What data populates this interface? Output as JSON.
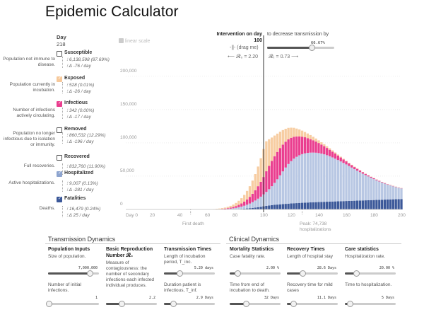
{
  "title": "Epidemic Calculator",
  "day": {
    "label": "Day",
    "value": "218"
  },
  "categories": [
    {
      "key": "susceptible",
      "name": "Susceptible",
      "desc": "Population not immune to disease.",
      "stat1": "6,138,598 (87.69%)",
      "stat2": "Δ -76 / day",
      "color": "#ffffff"
    },
    {
      "key": "exposed",
      "name": "Exposed",
      "desc": "Population currently in incubation.",
      "stat1": "528 (0.01%)",
      "stat2": "Δ -26 / day",
      "color": "#f7c99b"
    },
    {
      "key": "infectious",
      "name": "Infectious",
      "desc": "Number of infections actively circulating.",
      "stat1": "342 (0.00%)",
      "stat2": "Δ -17 / day",
      "color": "#ea3e8f"
    },
    {
      "key": "removed",
      "name": "Removed",
      "desc": "Population no longer infectious due to isolation or immunity.",
      "stat1": "860,532 (12.29%)",
      "stat2": "Δ -196 / day",
      "color": "#ffffff"
    },
    {
      "key": "recovered",
      "name": "Recovered",
      "desc": "Full recoveries.",
      "stat1": "832,760 (11.90%)",
      "stat2": "",
      "color": "#ffffff"
    },
    {
      "key": "hospitalized",
      "name": "Hospitalized",
      "desc": "Active hospitalizations.",
      "stat1": "9,007 (0.13%)",
      "stat2": "Δ -281 / day",
      "color": "#8da4cf"
    },
    {
      "key": "fatalities",
      "name": "Fatalities",
      "desc": "Deaths.",
      "stat1": "16,479 (0.24%)",
      "stat2": "Δ 25 / day",
      "color": "#3b5899"
    }
  ],
  "chart": {
    "linear_scale": "linear scale",
    "intervention_label": "Intervention on day",
    "intervention_day": "100",
    "drag": "(drag me)",
    "r0": "𝓡₀ = 2.20",
    "rt": "𝓡ₜ = 0.73",
    "decrease_text": "to decrease transmission by",
    "decrease_pct": "66.67%",
    "decrease_value": 0.6667,
    "first_death": "First death",
    "peak": "Peak: 74,738",
    "peak_sub": "hospitalizations",
    "x_ticks": [
      "Day 0",
      "20",
      "40",
      "60",
      "80",
      "100",
      "120",
      "140",
      "160",
      "180",
      "200"
    ],
    "y_ticks": [
      "0",
      "50,000",
      "100,000",
      "150,000",
      "200,000"
    ]
  },
  "chart_data": {
    "type": "bar",
    "title": "Epidemic Calculator",
    "xlabel": "Day",
    "ylabel": "",
    "xlim": [
      0,
      200
    ],
    "ylim": [
      0,
      240000
    ],
    "intervention_day": 100,
    "series": [
      {
        "name": "Fatalities",
        "color": "#3b5899"
      },
      {
        "name": "Hospitalized",
        "color": "#8da4cf"
      },
      {
        "name": "Infectious",
        "color": "#ea3e8f"
      },
      {
        "name": "Exposed",
        "color": "#f7c99b"
      }
    ],
    "x": [
      60,
      62,
      64,
      66,
      68,
      70,
      72,
      74,
      76,
      78,
      80,
      82,
      84,
      86,
      88,
      90,
      92,
      94,
      96,
      98,
      100,
      102,
      104,
      106,
      108,
      110,
      112,
      114,
      116,
      118,
      120,
      122,
      124,
      126,
      128,
      130,
      132,
      134,
      136,
      138,
      140,
      142,
      144,
      146,
      148,
      150,
      152,
      154,
      156,
      158,
      160,
      162,
      164,
      166,
      168,
      170,
      172,
      174,
      176,
      178,
      180,
      182,
      184,
      186,
      188,
      190,
      192,
      194,
      196,
      198,
      200
    ],
    "fatalities": [
      0,
      0,
      0,
      0,
      0,
      0,
      0,
      100,
      200,
      300,
      500,
      700,
      900,
      1200,
      1500,
      1900,
      2300,
      2800,
      3400,
      4000,
      4700,
      5300,
      5900,
      6400,
      6900,
      7300,
      7700,
      8100,
      8400,
      8700,
      9000,
      9300,
      9500,
      9800,
      10000,
      10200,
      10400,
      10600,
      10800,
      10950,
      11100,
      11300,
      11450,
      11600,
      11750,
      11900,
      12050,
      12200,
      12350,
      12500,
      12650,
      12800,
      12950,
      13100,
      13250,
      13400,
      13550,
      13700,
      13850,
      14000,
      14150,
      14300,
      14450,
      14600,
      14750,
      14900,
      15050,
      15200,
      15350,
      15500,
      15650
    ],
    "hospitalized": [
      0,
      0,
      0,
      100,
      200,
      300,
      500,
      700,
      1000,
      1400,
      1900,
      2600,
      3400,
      4400,
      5600,
      7000,
      8700,
      10600,
      12800,
      15200,
      18000,
      21000,
      24500,
      28500,
      33000,
      38000,
      43500,
      49000,
      54500,
      59500,
      63500,
      67000,
      69500,
      71500,
      73000,
      74000,
      74500,
      74700,
      74600,
      74200,
      73500,
      72500,
      71300,
      69800,
      68100,
      66200,
      64200,
      62000,
      59700,
      57300,
      54900,
      52400,
      49900,
      47400,
      45000,
      42600,
      40200,
      37900,
      35700,
      33600,
      31500,
      29500,
      27600,
      25800,
      24100,
      22500,
      21000,
      19600,
      18300,
      17100,
      16000
    ],
    "infectious": [
      100,
      150,
      200,
      300,
      400,
      600,
      800,
      1100,
      1500,
      2000,
      2700,
      3600,
      4700,
      6100,
      7900,
      10000,
      12500,
      15400,
      18700,
      22300,
      26000,
      31000,
      35000,
      38000,
      40000,
      41000,
      41000,
      40200,
      38800,
      37000,
      35000,
      32800,
      30600,
      28400,
      26200,
      24100,
      22100,
      20200,
      18400,
      16700,
      15100,
      13600,
      12200,
      10900,
      9700,
      8600,
      7600,
      6700,
      5900,
      5200,
      4600,
      4000,
      3500,
      3100,
      2700,
      2400,
      2100,
      1800,
      1600,
      1400,
      1200,
      1100,
      950,
      850,
      750,
      650,
      580,
      520,
      460,
      400,
      350
    ],
    "exposed": [
      200,
      300,
      400,
      600,
      800,
      1100,
      1500,
      2000,
      2700,
      3600,
      4700,
      6100,
      7900,
      10100,
      12800,
      16000,
      19800,
      24300,
      29500,
      35400,
      42000,
      45000,
      40000,
      35000,
      31000,
      27500,
      24500,
      21800,
      19400,
      17200,
      15200,
      13400,
      11800,
      10400,
      9100,
      8000,
      7000,
      6100,
      5300,
      4600,
      4000,
      3500,
      3000,
      2600,
      2300,
      2000,
      1700,
      1500,
      1300,
      1100,
      950,
      830,
      720,
      620,
      540,
      470,
      410,
      360,
      310,
      270,
      230,
      200,
      175,
      150,
      130,
      115,
      100,
      88,
      76,
      66,
      58
    ]
  },
  "sections": {
    "transmission_title": "Transmission Dynamics",
    "clinical_title": "Clinical Dynamics"
  },
  "columns": [
    {
      "key": "population",
      "title": "Population Inputs",
      "desc": "Size of population.",
      "value": "7,000,000",
      "fill": 0.82,
      "desc2": "Number of initial infections.",
      "value2": "1",
      "fill2": 0.02
    },
    {
      "key": "r0",
      "title": "Basic Reproduction Number 𝓡₀",
      "desc": "Measure of contagiousness: the number of secondary infections each infected individual produces.",
      "value": "",
      "fill": null,
      "desc2": "",
      "value2": "2.2",
      "fill2": 0.3
    },
    {
      "key": "transmission",
      "title": "Transmission Times",
      "desc": "Length of incubation period, T_inc.",
      "value": "5.20 days",
      "fill": 0.3,
      "desc2": "Duration patient is infectious, T_inf.",
      "value2": "2.9 Days",
      "fill2": 0.18
    },
    {
      "key": "mortality",
      "title": "Mortality Statistics",
      "desc": "Case fatality rate.",
      "value": "2.00 %",
      "fill": 0.15,
      "desc2": "Time from end of incubation to death.",
      "value2": "32 Days",
      "fill2": 0.32
    },
    {
      "key": "recovery",
      "title": "Recovery Times",
      "desc": "Length of hospital stay",
      "value": "28.6 Days",
      "fill": 0.3,
      "desc2": "Recovery time for mild cases",
      "value2": "11.1 Days",
      "fill2": 0.12
    },
    {
      "key": "care",
      "title": "Care statistics",
      "desc": "Hospitalization rate.",
      "value": "20.00 %",
      "fill": 0.22,
      "desc2": "Time to hospitalization.",
      "value2": "5 Days",
      "fill2": 0.1
    }
  ]
}
